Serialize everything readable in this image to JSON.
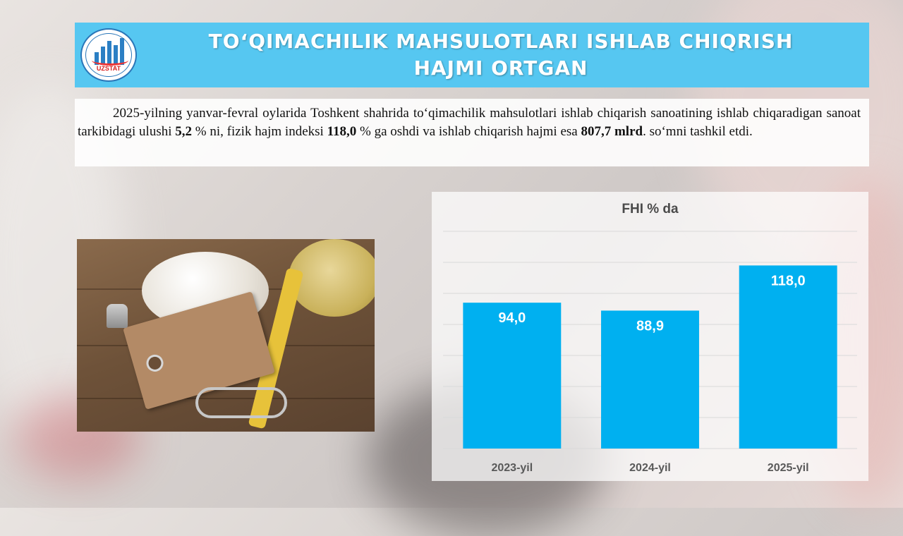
{
  "header": {
    "logo_text": "UZSTAT",
    "title_line1": "TO‘QIMACHILIK MAHSULOTLARI ISHLAB CHIQRISH",
    "title_line2": "HAJMI ORTGAN"
  },
  "text": {
    "p1": "2025-yilning yanvar-fevral oylarida Toshkent shahrida to‘qimachilik mahsulotlari ishlab chiqarish sanoatining ishlab chiqaradigan sanoat tarkibidagi ulushi ",
    "v1": "5,2",
    "p2": " % ni, fizik hajm indeksi ",
    "v2": "118,0",
    "p3": " % ga oshdi va ishlab chiqarish hajmi esa ",
    "v3": "807,7 mlrd",
    "p4": ". so‘mni tashkil etdi."
  },
  "colors": {
    "header_bg": "#56c7f1",
    "bar": "#00b0f0",
    "bar_label": "#ffffff",
    "axis_label": "#595959"
  },
  "chart_data": {
    "type": "bar",
    "title": "FHI % da",
    "categories": [
      "2023-yil",
      "2024-yil",
      "2025-yil"
    ],
    "values": [
      94.0,
      88.9,
      118.0
    ],
    "data_labels": [
      "94,0",
      "88,9",
      "118,0"
    ],
    "ylim": [
      0,
      140
    ],
    "grid": true,
    "legend": "none"
  }
}
